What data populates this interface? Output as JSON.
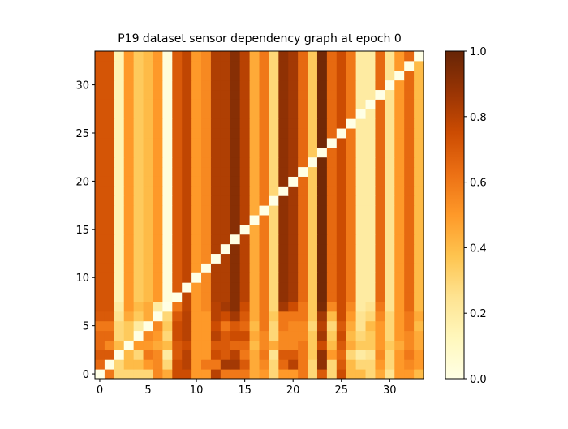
{
  "chart_data": {
    "type": "heatmap",
    "title": "P19 dataset sensor dependency graph at epoch 0",
    "xlabel": "",
    "ylabel": "",
    "n": 34,
    "x_ticks": [
      0,
      5,
      10,
      15,
      20,
      25,
      30
    ],
    "y_ticks": [
      0,
      5,
      10,
      15,
      20,
      25,
      30
    ],
    "colorbar": {
      "min": 0.0,
      "max": 1.0,
      "ticks": [
        "0.0",
        "0.2",
        "0.4",
        "0.6",
        "0.8",
        "1.0"
      ]
    },
    "colormap": [
      "#ffffe5",
      "#fff7bc",
      "#fee391",
      "#fec44f",
      "#fe9929",
      "#ec7014",
      "#cc4c02",
      "#993404",
      "#662506"
    ],
    "diagonal_value": 0.0,
    "column_values_rows_8_to_33": [
      0.72,
      0.72,
      0.15,
      0.5,
      0.35,
      0.4,
      0.5,
      0.03,
      0.7,
      0.78,
      0.5,
      0.55,
      0.82,
      0.82,
      0.92,
      0.8,
      0.45,
      0.6,
      0.3,
      0.9,
      0.85,
      0.65,
      0.35,
      0.97,
      0.65,
      0.75,
      0.6,
      0.2,
      0.2,
      0.65,
      0.25,
      0.5,
      0.65,
      0.4
    ],
    "rows_0_to_7": [
      [
        0.0,
        0.6,
        0.3,
        0.3,
        0.3,
        0.3,
        0.55,
        0.45,
        0.75,
        0.75,
        0.5,
        0.5,
        0.8,
        0.6,
        0.6,
        0.6,
        0.45,
        0.5,
        0.3,
        0.5,
        0.5,
        0.6,
        0.3,
        0.7,
        0.3,
        0.75,
        0.4,
        0.4,
        0.3,
        0.45,
        0.25,
        0.5,
        0.5,
        0.4
      ],
      [
        0.65,
        0.0,
        0.3,
        0.4,
        0.4,
        0.5,
        0.55,
        0.3,
        0.75,
        0.8,
        0.5,
        0.6,
        0.6,
        0.85,
        0.85,
        0.7,
        0.45,
        0.55,
        0.3,
        0.65,
        0.8,
        0.6,
        0.3,
        0.9,
        0.3,
        0.7,
        0.4,
        0.3,
        0.3,
        0.5,
        0.3,
        0.5,
        0.55,
        0.5
      ],
      [
        0.7,
        0.7,
        0.0,
        0.4,
        0.3,
        0.6,
        0.55,
        0.2,
        0.7,
        0.8,
        0.5,
        0.5,
        0.75,
        0.7,
        0.8,
        0.6,
        0.45,
        0.6,
        0.25,
        0.7,
        0.7,
        0.6,
        0.35,
        0.9,
        0.5,
        0.65,
        0.3,
        0.2,
        0.25,
        0.55,
        0.3,
        0.5,
        0.6,
        0.5
      ],
      [
        0.65,
        0.55,
        0.4,
        0.0,
        0.5,
        0.5,
        0.45,
        0.4,
        0.7,
        0.75,
        0.5,
        0.5,
        0.7,
        0.7,
        0.65,
        0.65,
        0.4,
        0.55,
        0.45,
        0.55,
        0.55,
        0.6,
        0.35,
        0.75,
        0.4,
        0.7,
        0.45,
        0.35,
        0.35,
        0.5,
        0.35,
        0.45,
        0.55,
        0.45
      ],
      [
        0.65,
        0.65,
        0.3,
        0.35,
        0.0,
        0.55,
        0.5,
        0.3,
        0.75,
        0.8,
        0.5,
        0.5,
        0.8,
        0.7,
        0.75,
        0.75,
        0.45,
        0.55,
        0.3,
        0.55,
        0.55,
        0.55,
        0.35,
        0.85,
        0.35,
        0.75,
        0.4,
        0.3,
        0.35,
        0.5,
        0.3,
        0.5,
        0.55,
        0.45
      ],
      [
        0.6,
        0.6,
        0.3,
        0.35,
        0.2,
        0.0,
        0.55,
        0.35,
        0.75,
        0.8,
        0.5,
        0.5,
        0.75,
        0.6,
        0.7,
        0.65,
        0.4,
        0.6,
        0.3,
        0.6,
        0.55,
        0.55,
        0.3,
        0.8,
        0.3,
        0.7,
        0.45,
        0.25,
        0.4,
        0.5,
        0.3,
        0.5,
        0.6,
        0.4
      ],
      [
        0.7,
        0.7,
        0.25,
        0.45,
        0.35,
        0.45,
        0.0,
        0.3,
        0.7,
        0.8,
        0.5,
        0.5,
        0.8,
        0.75,
        0.85,
        0.7,
        0.45,
        0.6,
        0.35,
        0.6,
        0.6,
        0.6,
        0.35,
        0.85,
        0.4,
        0.75,
        0.5,
        0.25,
        0.3,
        0.55,
        0.3,
        0.5,
        0.6,
        0.45
      ],
      [
        0.72,
        0.72,
        0.2,
        0.5,
        0.4,
        0.45,
        0.2,
        0.0,
        0.6,
        0.78,
        0.5,
        0.55,
        0.8,
        0.85,
        0.92,
        0.75,
        0.45,
        0.6,
        0.3,
        0.85,
        0.75,
        0.6,
        0.35,
        0.95,
        0.55,
        0.75,
        0.55,
        0.2,
        0.25,
        0.6,
        0.25,
        0.5,
        0.65,
        0.4
      ]
    ]
  }
}
